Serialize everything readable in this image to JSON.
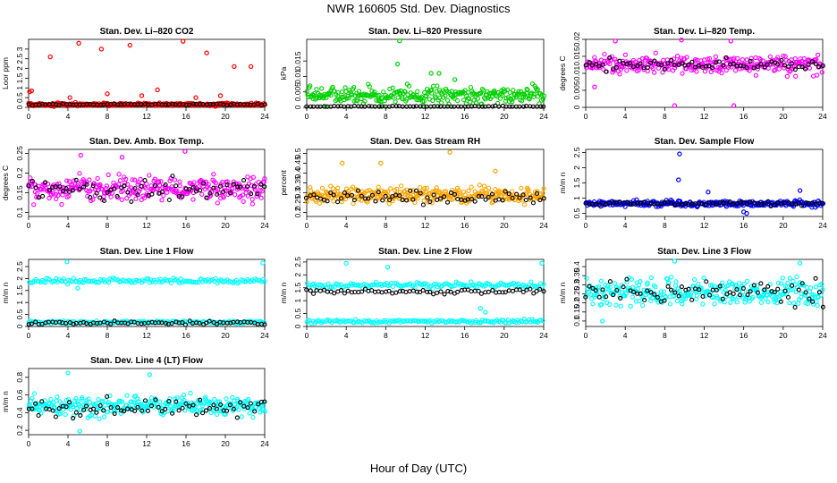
{
  "page": {
    "title": "NWR  160605  Std. Dev. Diagnostics",
    "xlabel": "Hour of Day (UTC)"
  },
  "chart_data": [
    {
      "type": "scatter",
      "title": "Stan. Dev. Li–820 CO2",
      "ylabel": "Loor ppm",
      "xlim": [
        0,
        24
      ],
      "ylim": [
        0,
        3.5
      ],
      "yticks": [
        0,
        0.5,
        1,
        1.5,
        2,
        2.5,
        3
      ],
      "xticks": [
        0,
        4,
        8,
        12,
        16,
        20,
        24
      ],
      "color": "#ff0000",
      "base": 0.15,
      "spread": 0.07,
      "black_base": 0.15,
      "black_spread": 0.04,
      "outliers": [
        [
          0.1,
          0.8
        ],
        [
          0.3,
          0.85
        ],
        [
          2.2,
          2.6
        ],
        [
          5.1,
          3.3
        ],
        [
          7.4,
          3.0
        ],
        [
          8.0,
          0.7
        ],
        [
          10.3,
          3.2
        ],
        [
          13.1,
          0.9
        ],
        [
          15.7,
          3.4
        ],
        [
          18.1,
          2.8
        ],
        [
          20.9,
          2.1
        ],
        [
          22.6,
          2.1
        ],
        [
          4.2,
          0.5
        ],
        [
          11.5,
          0.6
        ],
        [
          17.0,
          0.5
        ],
        [
          19.5,
          0.6
        ]
      ]
    },
    {
      "type": "scatter",
      "title": "Stan. Dev. Li–820 Pressure",
      "ylabel": "kPa",
      "xlim": [
        0,
        24
      ],
      "ylim": [
        0,
        0.022
      ],
      "yticks": [
        0,
        0.005,
        0.01,
        0.015
      ],
      "xticks": [
        0,
        4,
        8,
        12,
        16,
        20,
        24
      ],
      "color": "#00d000",
      "base": 0.004,
      "spread": 0.0025,
      "black_base": 0.0002,
      "black_spread": 0.0002,
      "outliers": [
        [
          9.4,
          0.0215
        ],
        [
          9.2,
          0.014
        ],
        [
          12.6,
          0.011
        ],
        [
          13.4,
          0.011
        ],
        [
          15.0,
          0.009
        ]
      ]
    },
    {
      "type": "scatter",
      "title": "Stan. Dev. Li–820 Temp.",
      "ylabel": "degrees C",
      "xlim": [
        0,
        24
      ],
      "ylim": [
        0,
        0.02
      ],
      "yticks": [
        0,
        0.005,
        0.01,
        0.015,
        0.02
      ],
      "xticks": [
        0,
        4,
        8,
        12,
        16,
        20,
        24
      ],
      "color": "#ff00ff",
      "base": 0.0125,
      "spread": 0.0025,
      "black_base": 0.0125,
      "black_spread": 0.0015,
      "outliers": [
        [
          3.0,
          0.0195
        ],
        [
          9.0,
          0.0005
        ],
        [
          9.7,
          0.0205
        ],
        [
          15.0,
          0.0005
        ],
        [
          14.7,
          0.0195
        ],
        [
          0.9,
          0.006
        ]
      ]
    },
    {
      "type": "scatter",
      "title": "Stan. Dev. Amb. Box Temp.",
      "ylabel": "degrees C",
      "xlim": [
        0,
        24
      ],
      "ylim": [
        0.09,
        0.26
      ],
      "yticks": [
        0.1,
        0.15,
        0.2,
        0.25
      ],
      "xticks": [
        0,
        4,
        8,
        12,
        16,
        20,
        24
      ],
      "color": "#ff00ff",
      "base": 0.16,
      "spread": 0.03,
      "black_base": 0.16,
      "black_spread": 0.025,
      "outliers": [
        [
          5.3,
          0.245
        ],
        [
          15.9,
          0.255
        ],
        [
          9.5,
          0.24
        ]
      ]
    },
    {
      "type": "scatter",
      "title": "Stan. Dev. Gas Stream RH",
      "ylabel": "percent",
      "xlim": [
        0,
        24
      ],
      "ylim": [
        0.18,
        0.52
      ],
      "yticks": [
        0.2,
        0.25,
        0.3,
        0.35,
        0.4,
        0.45,
        0.5
      ],
      "xticks": [
        0,
        4,
        8,
        12,
        16,
        20,
        24
      ],
      "color": "#ffa500",
      "base": 0.29,
      "spread": 0.035,
      "black_base": 0.28,
      "black_spread": 0.03,
      "outliers": [
        [
          14.5,
          0.505
        ],
        [
          3.6,
          0.45
        ],
        [
          7.5,
          0.45
        ],
        [
          19.1,
          0.41
        ]
      ]
    },
    {
      "type": "scatter",
      "title": "Stan. Dev. Sample Flow",
      "ylabel": "m/m n",
      "xlim": [
        0,
        24
      ],
      "ylim": [
        0.4,
        2.6
      ],
      "yticks": [
        0.5,
        1,
        1.5,
        2,
        2.5
      ],
      "xticks": [
        0,
        4,
        8,
        12,
        16,
        20,
        24
      ],
      "color": "#0000ff",
      "base": 0.82,
      "spread": 0.09,
      "black_base": 0.82,
      "black_spread": 0.06,
      "outliers": [
        [
          9.5,
          2.45
        ],
        [
          9.4,
          1.6
        ],
        [
          12.4,
          1.2
        ],
        [
          16.3,
          0.5
        ],
        [
          16.0,
          0.55
        ],
        [
          21.7,
          1.25
        ]
      ]
    },
    {
      "type": "scatter",
      "title": "Stan. Dev. Line 1 Flow",
      "ylabel": "m/m n",
      "xlim": [
        0,
        24
      ],
      "ylim": [
        0,
        2.8
      ],
      "yticks": [
        0,
        0.5,
        1,
        1.5,
        2,
        2.5
      ],
      "xticks": [
        0,
        4,
        8,
        12,
        16,
        20,
        24
      ],
      "color": "#00ffff",
      "base": 1.9,
      "spread": 0.1,
      "black_base": 0.15,
      "black_spread": 0.07,
      "low_band": [
        0.18,
        0.06
      ],
      "outliers": [
        [
          3.9,
          2.7
        ],
        [
          23.8,
          2.65
        ],
        [
          5.0,
          1.6
        ]
      ]
    },
    {
      "type": "scatter",
      "title": "Stan. Dev. Line 2 Flow",
      "ylabel": "m/m n",
      "xlim": [
        0,
        24
      ],
      "ylim": [
        0,
        2.6
      ],
      "yticks": [
        0,
        0.5,
        1,
        1.5,
        2,
        2.5
      ],
      "xticks": [
        0,
        4,
        8,
        12,
        16,
        20,
        24
      ],
      "color": "#00ffff",
      "base": 1.6,
      "spread": 0.1,
      "black_base": 1.35,
      "black_spread": 0.08,
      "low_band": [
        0.2,
        0.07
      ],
      "outliers": [
        [
          4.0,
          2.45
        ],
        [
          23.8,
          2.45
        ],
        [
          17.6,
          0.7
        ],
        [
          18.1,
          0.55
        ],
        [
          8.2,
          2.3
        ]
      ]
    },
    {
      "type": "scatter",
      "title": "Stan. Dev. Line 3 Flow",
      "ylabel": "m/m n",
      "xlim": [
        0,
        24
      ],
      "ylim": [
        0.07,
        0.44
      ],
      "yticks": [
        0.1,
        0.15,
        0.2,
        0.25,
        0.3,
        0.35,
        0.4
      ],
      "xticks": [
        0,
        4,
        8,
        12,
        16,
        20,
        24
      ],
      "color": "#00ffff",
      "base": 0.26,
      "spread": 0.07,
      "black_base": 0.26,
      "black_spread": 0.06,
      "outliers": [
        [
          9.0,
          0.43
        ],
        [
          21.7,
          0.42
        ],
        [
          1.7,
          0.1
        ]
      ]
    },
    {
      "type": "scatter",
      "title": "Stan. Dev. Line 4 (LT) Flow",
      "ylabel": "m/m n",
      "xlim": [
        0,
        24
      ],
      "ylim": [
        0.15,
        0.9
      ],
      "yticks": [
        0.2,
        0.4,
        0.6,
        0.8
      ],
      "xticks": [
        0,
        4,
        8,
        12,
        16,
        20,
        24
      ],
      "color": "#00ffff",
      "base": 0.48,
      "spread": 0.1,
      "black_base": 0.45,
      "black_spread": 0.09,
      "outliers": [
        [
          4.0,
          0.85
        ],
        [
          5.2,
          0.19
        ],
        [
          12.3,
          0.83
        ]
      ]
    }
  ]
}
